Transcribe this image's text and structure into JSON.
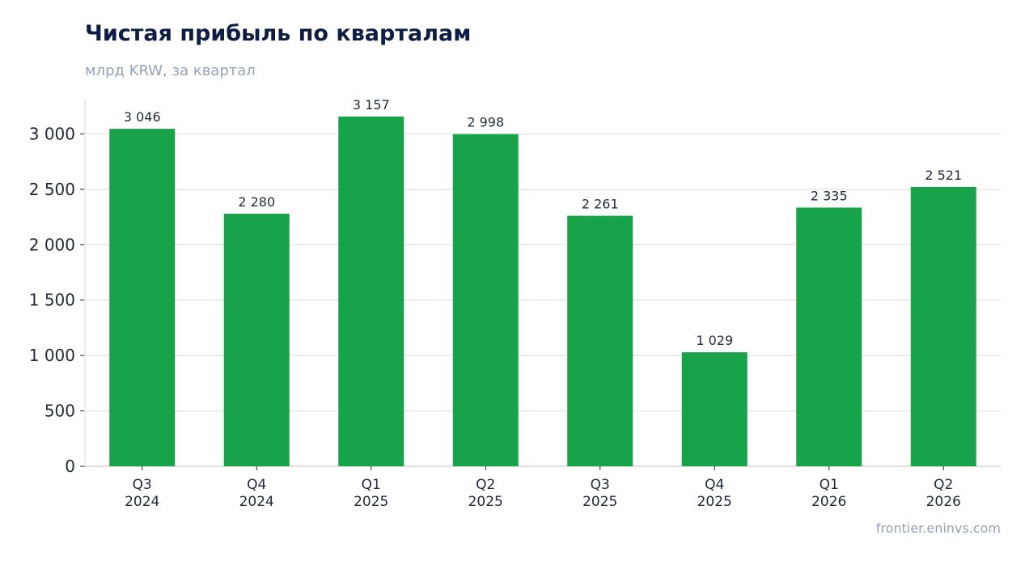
{
  "header": {
    "title": "Чистая прибыль по кварталам",
    "subtitle": "млрд KRW, за квартал"
  },
  "footer": {
    "source": "frontier.eninvs.com"
  },
  "colors": {
    "bar": "#18a34a",
    "title": "#0f1d45",
    "muted": "#94a3b8",
    "grid": "#e5e7eb",
    "axis": "#d1d5db",
    "text": "#1f2937"
  },
  "chart_data": {
    "type": "bar",
    "title": "Чистая прибыль по кварталам",
    "subtitle": "млрд KRW, за квартал",
    "categories": [
      [
        "Q3",
        "2024"
      ],
      [
        "Q4",
        "2024"
      ],
      [
        "Q1",
        "2025"
      ],
      [
        "Q2",
        "2025"
      ],
      [
        "Q3",
        "2025"
      ],
      [
        "Q4",
        "2025"
      ],
      [
        "Q1",
        "2026"
      ],
      [
        "Q2",
        "2026"
      ]
    ],
    "values": [
      3046,
      2280,
      3157,
      2998,
      2261,
      1029,
      2335,
      2521
    ],
    "data_labels": [
      "3 046",
      "2 280",
      "3 157",
      "2 998",
      "2 261",
      "1 029",
      "2 335",
      "2 521"
    ],
    "y_ticks": [
      0,
      500,
      1000,
      1500,
      2000,
      2500,
      3000
    ],
    "y_tick_labels": [
      "0",
      "500",
      "1 000",
      "1 500",
      "2 000",
      "2 500",
      "3 000"
    ],
    "ylim": [
      0,
      3310
    ],
    "grid": true,
    "legend": "none"
  }
}
